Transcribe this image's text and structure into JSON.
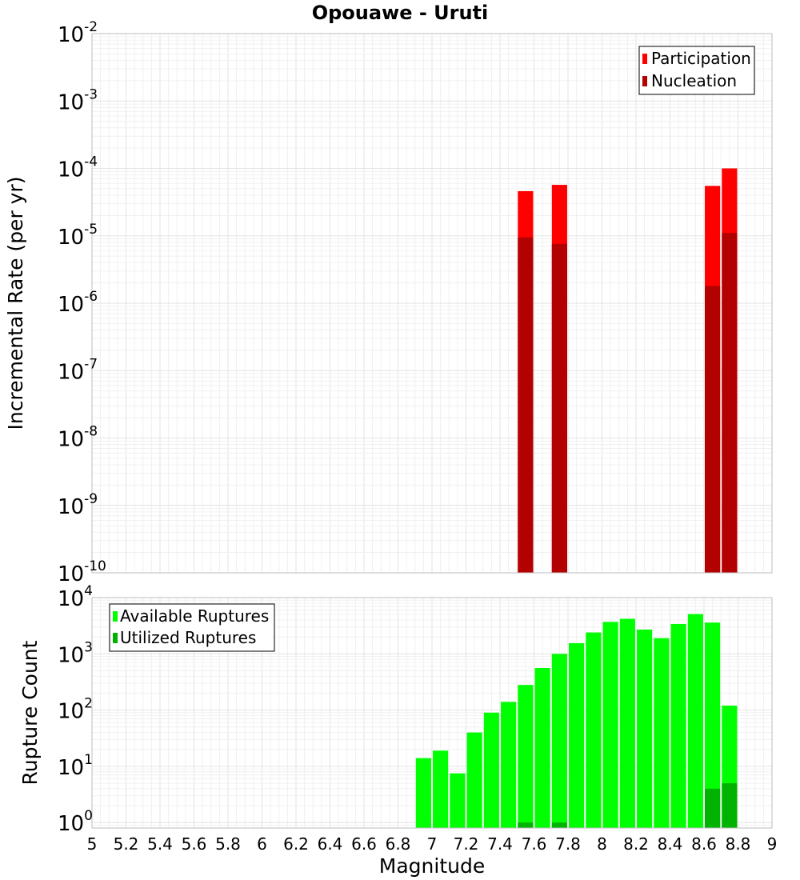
{
  "chart_data": [
    {
      "type": "bar",
      "title": "Opouawe - Uruti",
      "ylabel": "Incremental Rate (per yr)",
      "yscale": "log",
      "ylim": [
        1e-10,
        0.01
      ],
      "xlim": [
        5,
        9
      ],
      "grid": true,
      "legend_position": "top-right",
      "yticks": [
        {
          "base": "10",
          "exp": "-2"
        },
        {
          "base": "10",
          "exp": "-3"
        },
        {
          "base": "10",
          "exp": "-4"
        },
        {
          "base": "10",
          "exp": "-5"
        },
        {
          "base": "10",
          "exp": "-6"
        },
        {
          "base": "10",
          "exp": "-7"
        },
        {
          "base": "10",
          "exp": "-8"
        },
        {
          "base": "10",
          "exp": "-9"
        },
        {
          "base": "10",
          "exp": "-10"
        }
      ],
      "series": [
        {
          "name": "Participation",
          "color": "#ff0000",
          "x": [
            7.55,
            7.75,
            8.65,
            8.75
          ],
          "values": [
            4.6e-05,
            5.7e-05,
            5.5e-05,
            0.0001
          ]
        },
        {
          "name": "Nucleation",
          "color": "#b30000",
          "x": [
            7.55,
            7.75,
            8.65,
            8.75
          ],
          "values": [
            9.5e-06,
            7.6e-06,
            1.8e-06,
            1.1e-05
          ]
        }
      ]
    },
    {
      "type": "bar",
      "ylabel": "Rupture Count",
      "xlabel": "Magnitude",
      "yscale": "log",
      "ylim": [
        0.8,
        10000
      ],
      "xlim": [
        5,
        9
      ],
      "grid": true,
      "legend_position": "top-left",
      "xticks": [
        "5",
        "5.2",
        "5.4",
        "5.6",
        "5.8",
        "6",
        "6.2",
        "6.4",
        "6.6",
        "6.8",
        "7",
        "7.2",
        "7.4",
        "7.6",
        "7.8",
        "8",
        "8.2",
        "8.4",
        "8.6",
        "8.8",
        "9"
      ],
      "yticks": [
        {
          "base": "10",
          "exp": "4"
        },
        {
          "base": "10",
          "exp": "3"
        },
        {
          "base": "10",
          "exp": "2"
        },
        {
          "base": "10",
          "exp": "1"
        },
        {
          "base": "10",
          "exp": "0"
        }
      ],
      "series": [
        {
          "name": "Available Ruptures",
          "color": "#00ff00",
          "x": [
            6.95,
            7.05,
            7.15,
            7.25,
            7.35,
            7.45,
            7.55,
            7.65,
            7.75,
            7.85,
            7.95,
            8.05,
            8.15,
            8.25,
            8.35,
            8.45,
            8.55,
            8.65,
            8.75
          ],
          "values": [
            14,
            19,
            7.5,
            40,
            90,
            140,
            280,
            560,
            1000,
            1550,
            2400,
            3700,
            4200,
            2700,
            1900,
            3400,
            5100,
            3600,
            120
          ]
        },
        {
          "name": "Utilized Ruptures",
          "color": "#00b300",
          "x": [
            7.55,
            7.75,
            8.65,
            8.75
          ],
          "values": [
            1,
            1,
            4,
            5
          ]
        }
      ]
    }
  ]
}
